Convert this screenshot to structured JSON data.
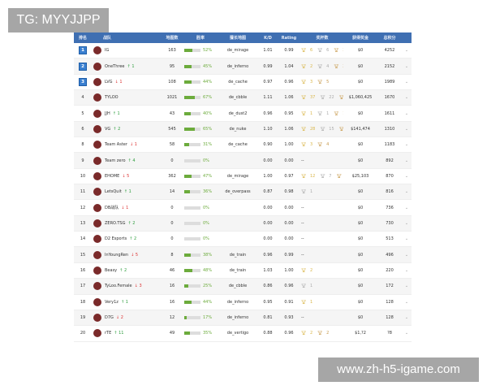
{
  "watermarks": {
    "top_left": "TG: MYYJJPP",
    "bottom_right": "www.zh-h5-igame.com"
  },
  "colors": {
    "header": "#3f6fb2",
    "winrate": "#6cab3c",
    "up": "#2e9e3e",
    "down": "#d33333",
    "rank_badge": "#3a7fd0"
  },
  "headers": [
    "排名",
    "战队",
    "地图数",
    "胜率",
    "擅长地图",
    "K/D",
    "Rating",
    "奖杯数",
    "获得奖金",
    "总积分"
  ],
  "rows": [
    {
      "rank": "1",
      "team": "IG",
      "change": "",
      "dir": "",
      "maps": "163",
      "win": "52%",
      "win_pct": 52,
      "map": "de_mirage",
      "kd": "1.01",
      "rating": "0.99",
      "gold": "6",
      "silver": "6",
      "bronze": "3",
      "prize": "$0",
      "points": "4252"
    },
    {
      "rank": "2",
      "team": "OneThree",
      "change": "1",
      "dir": "up",
      "maps": "95",
      "win": "45%",
      "win_pct": 45,
      "map": "de_inferno",
      "kd": "0.99",
      "rating": "1.04",
      "gold": "2",
      "silver": "4",
      "bronze": "2",
      "prize": "$0",
      "points": "2152"
    },
    {
      "rank": "3",
      "team": "LVG",
      "change": "1",
      "dir": "down",
      "maps": "108",
      "win": "44%",
      "win_pct": 44,
      "map": "de_cache",
      "kd": "0.97",
      "rating": "0.96",
      "gold": "3",
      "silver": "",
      "bronze": "5",
      "prize": "$0",
      "points": "1989"
    },
    {
      "rank": "4",
      "team": "TYLOO",
      "change": "",
      "dir": "",
      "maps": "1021",
      "win": "67%",
      "win_pct": 67,
      "map": "de_cbble",
      "kd": "1.11",
      "rating": "1.06",
      "gold": "37",
      "silver": "22",
      "bronze": "16",
      "prize": "$1,060,425",
      "points": "1670"
    },
    {
      "rank": "5",
      "team": "JJH",
      "change": "1",
      "dir": "up",
      "maps": "43",
      "win": "40%",
      "win_pct": 40,
      "map": "de_dust2",
      "kd": "0.96",
      "rating": "0.95",
      "gold": "1",
      "silver": "1",
      "bronze": "1",
      "prize": "$0",
      "points": "1611"
    },
    {
      "rank": "6",
      "team": "VG",
      "change": "2",
      "dir": "up",
      "maps": "545",
      "win": "65%",
      "win_pct": 65,
      "map": "de_nuke",
      "kd": "1.10",
      "rating": "1.06",
      "gold": "28",
      "silver": "15",
      "bronze": "10",
      "prize": "$141,474",
      "points": "1310"
    },
    {
      "rank": "8",
      "team": "Team Aster",
      "change": "1",
      "dir": "down",
      "maps": "58",
      "win": "31%",
      "win_pct": 31,
      "map": "de_cache",
      "kd": "0.90",
      "rating": "1.00",
      "gold": "3",
      "silver": "",
      "bronze": "4",
      "prize": "$0",
      "points": "1183"
    },
    {
      "rank": "9",
      "team": "Team zero",
      "change": "4",
      "dir": "up",
      "maps": "0",
      "win": "0%",
      "win_pct": 0,
      "map": "",
      "kd": "0.00",
      "rating": "0.00",
      "trophy_text": "--",
      "prize": "$0",
      "points": "892"
    },
    {
      "rank": "10",
      "team": "EHOME",
      "change": "5",
      "dir": "down",
      "maps": "362",
      "win": "47%",
      "win_pct": 47,
      "map": "de_mirage",
      "kd": "1.00",
      "rating": "0.97",
      "gold": "12",
      "silver": "7",
      "bronze": "15",
      "prize": "$25,103",
      "points": "870"
    },
    {
      "rank": "11",
      "team": "LetsQuit",
      "change": "1",
      "dir": "up",
      "maps": "14",
      "win": "36%",
      "win_pct": 36,
      "map": "de_overpass",
      "kd": "0.87",
      "rating": "0.98",
      "gold": "",
      "silver": "1",
      "bronze": "",
      "prize": "$0",
      "points": "816"
    },
    {
      "rank": "12",
      "team": "DB战队",
      "change": "1",
      "dir": "down",
      "maps": "0",
      "win": "0%",
      "win_pct": 0,
      "map": "",
      "kd": "0.00",
      "rating": "0.00",
      "trophy_text": "--",
      "prize": "$0",
      "points": "736"
    },
    {
      "rank": "13",
      "team": "ZERO.TSG",
      "change": "2",
      "dir": "up",
      "maps": "0",
      "win": "0%",
      "win_pct": 0,
      "map": "",
      "kd": "0.00",
      "rating": "0.00",
      "trophy_text": "--",
      "prize": "$0",
      "points": "730"
    },
    {
      "rank": "14",
      "team": "D2 Esports",
      "change": "2",
      "dir": "up",
      "maps": "0",
      "win": "0%",
      "win_pct": 0,
      "map": "",
      "kd": "0.00",
      "rating": "0.00",
      "trophy_text": "--",
      "prize": "$0",
      "points": "513"
    },
    {
      "rank": "15",
      "team": "InYoungRen",
      "change": "5",
      "dir": "down",
      "maps": "8",
      "win": "38%",
      "win_pct": 38,
      "map": "de_train",
      "kd": "0.96",
      "rating": "0.99",
      "trophy_text": "--",
      "prize": "$0",
      "points": "496"
    },
    {
      "rank": "16",
      "team": "Beasy",
      "change": "2",
      "dir": "up",
      "maps": "46",
      "win": "48%",
      "win_pct": 48,
      "map": "de_train",
      "kd": "1.03",
      "rating": "1.00",
      "gold": "2",
      "silver": "",
      "bronze": "",
      "prize": "$0",
      "points": "220"
    },
    {
      "rank": "17",
      "team": "TyLoo.Female",
      "change": "3",
      "dir": "down",
      "maps": "16",
      "win": "25%",
      "win_pct": 25,
      "map": "de_cbble",
      "kd": "0.86",
      "rating": "0.96",
      "gold": "",
      "silver": "1",
      "bronze": "",
      "prize": "$0",
      "points": "172"
    },
    {
      "rank": "18",
      "team": "Very1z",
      "change": "1",
      "dir": "up",
      "maps": "16",
      "win": "44%",
      "win_pct": 44,
      "map": "de_inferno",
      "kd": "0.95",
      "rating": "0.91",
      "gold": "1",
      "silver": "",
      "bronze": "",
      "prize": "$0",
      "points": "128"
    },
    {
      "rank": "19",
      "team": "D7G",
      "change": "2",
      "dir": "down",
      "maps": "12",
      "win": "17%",
      "win_pct": 17,
      "map": "de_inferno",
      "kd": "0.81",
      "rating": "0.93",
      "trophy_text": "--",
      "prize": "$0",
      "points": "128"
    },
    {
      "rank": "20",
      "team": "rTE",
      "change": "11",
      "dir": "up",
      "maps": "49",
      "win": "35%",
      "win_pct": 35,
      "map": "de_vertigo",
      "kd": "0.88",
      "rating": "0.96",
      "gold": "2",
      "silver": "",
      "bronze": "2",
      "prize": "$1,?2",
      "points": "?8"
    }
  ]
}
